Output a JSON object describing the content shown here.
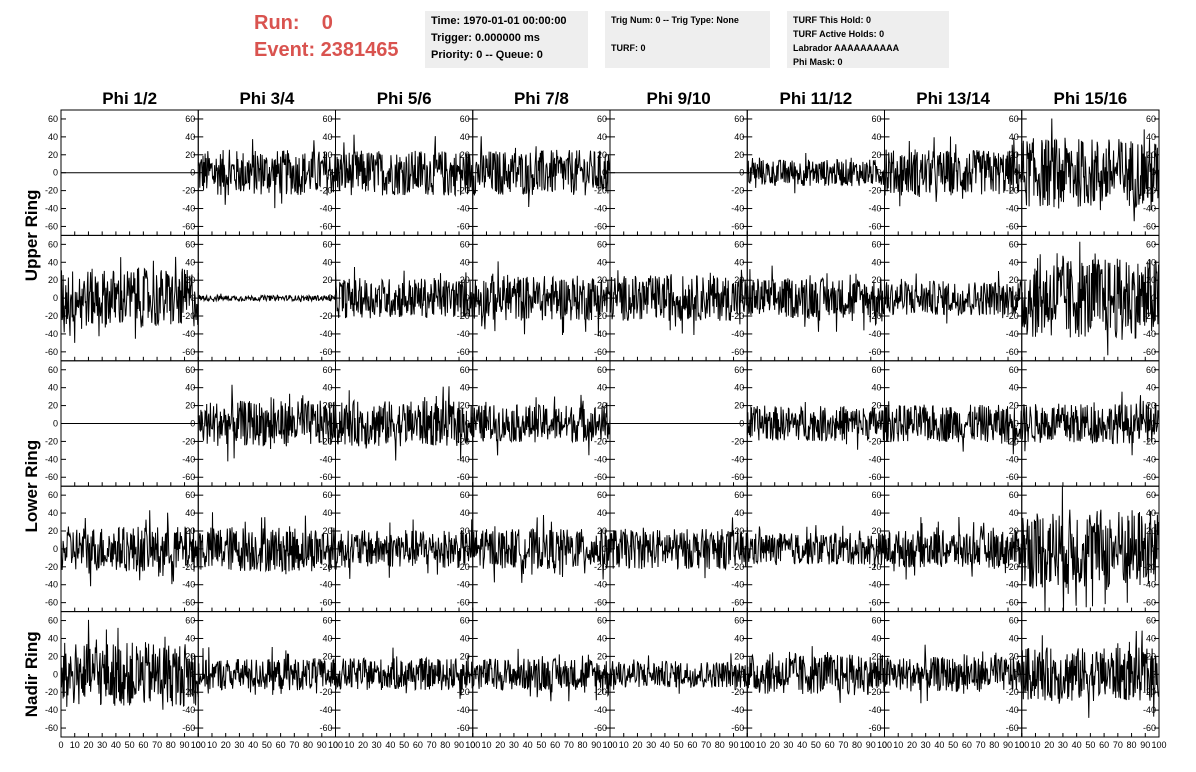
{
  "header": {
    "run_label": "Run:    0",
    "event_label": "Event: 2381465",
    "label_color": "#d9534f"
  },
  "info_boxes": {
    "time": "Time: 1970-01-01 00:00:00",
    "trigger": "Trigger: 0.000000 ms",
    "priority": "Priority: 0 -- Queue: 0",
    "trig_num": "Trig Num: 0 -- Trig Type: None",
    "turf": "TURF: 0",
    "turf_this_hold": "TURF This Hold: 0",
    "turf_active_holds": "TURF Active Holds: 0",
    "labrador": "Labrador AAAAAAAAAA",
    "phi_mask": "Phi Mask: 0"
  },
  "chart_data": {
    "type": "line",
    "grid": false,
    "columns": [
      "Phi 1/2",
      "Phi 3/4",
      "Phi 5/6",
      "Phi 7/8",
      "Phi 9/10",
      "Phi 11/12",
      "Phi 13/14",
      "Phi 15/16"
    ],
    "ring_labels": [
      {
        "label": "Upper Ring",
        "rows": [
          0,
          1
        ]
      },
      {
        "label": "Lower Ring",
        "rows": [
          2,
          3
        ]
      },
      {
        "label": "Nadir Ring",
        "rows": [
          4
        ]
      }
    ],
    "xlim": [
      0,
      100
    ],
    "ylim": [
      -70,
      70
    ],
    "x_ticks": [
      "0",
      "10",
      "20",
      "30",
      "40",
      "50",
      "60",
      "70",
      "80",
      "90",
      "100"
    ],
    "y_ticks": [
      "60",
      "40",
      "20",
      "0",
      "-20",
      "-40",
      "-60"
    ],
    "rows": [
      {
        "panels": [
          {
            "flat": true,
            "amplitude": 0
          },
          {
            "flat": false,
            "amplitude": 17
          },
          {
            "flat": false,
            "amplitude": 17
          },
          {
            "flat": false,
            "amplitude": 17
          },
          {
            "flat": true,
            "amplitude": 0
          },
          {
            "flat": false,
            "amplitude": 10
          },
          {
            "flat": false,
            "amplitude": 17
          },
          {
            "flat": false,
            "amplitude": 26
          }
        ]
      },
      {
        "panels": [
          {
            "flat": false,
            "amplitude": 22
          },
          {
            "flat": false,
            "amplitude": 2
          },
          {
            "flat": false,
            "amplitude": 15
          },
          {
            "flat": false,
            "amplitude": 17
          },
          {
            "flat": false,
            "amplitude": 17
          },
          {
            "flat": false,
            "amplitude": 15
          },
          {
            "flat": false,
            "amplitude": 13
          },
          {
            "flat": false,
            "amplitude": 30
          }
        ]
      },
      {
        "panels": [
          {
            "flat": true,
            "amplitude": 0
          },
          {
            "flat": false,
            "amplitude": 17
          },
          {
            "flat": false,
            "amplitude": 17
          },
          {
            "flat": false,
            "amplitude": 14
          },
          {
            "flat": true,
            "amplitude": 0
          },
          {
            "flat": false,
            "amplitude": 13
          },
          {
            "flat": false,
            "amplitude": 14
          },
          {
            "flat": false,
            "amplitude": 15
          }
        ]
      },
      {
        "panels": [
          {
            "flat": false,
            "amplitude": 17
          },
          {
            "flat": false,
            "amplitude": 17
          },
          {
            "flat": false,
            "amplitude": 14
          },
          {
            "flat": false,
            "amplitude": 15
          },
          {
            "flat": false,
            "amplitude": 15
          },
          {
            "flat": false,
            "amplitude": 12
          },
          {
            "flat": false,
            "amplitude": 14
          },
          {
            "flat": false,
            "amplitude": 30
          }
        ]
      },
      {
        "panels": [
          {
            "flat": false,
            "amplitude": 24
          },
          {
            "flat": false,
            "amplitude": 12
          },
          {
            "flat": false,
            "amplitude": 12
          },
          {
            "flat": false,
            "amplitude": 12
          },
          {
            "flat": false,
            "amplitude": 10
          },
          {
            "flat": false,
            "amplitude": 15
          },
          {
            "flat": false,
            "amplitude": 13
          },
          {
            "flat": false,
            "amplitude": 20
          }
        ]
      }
    ]
  }
}
